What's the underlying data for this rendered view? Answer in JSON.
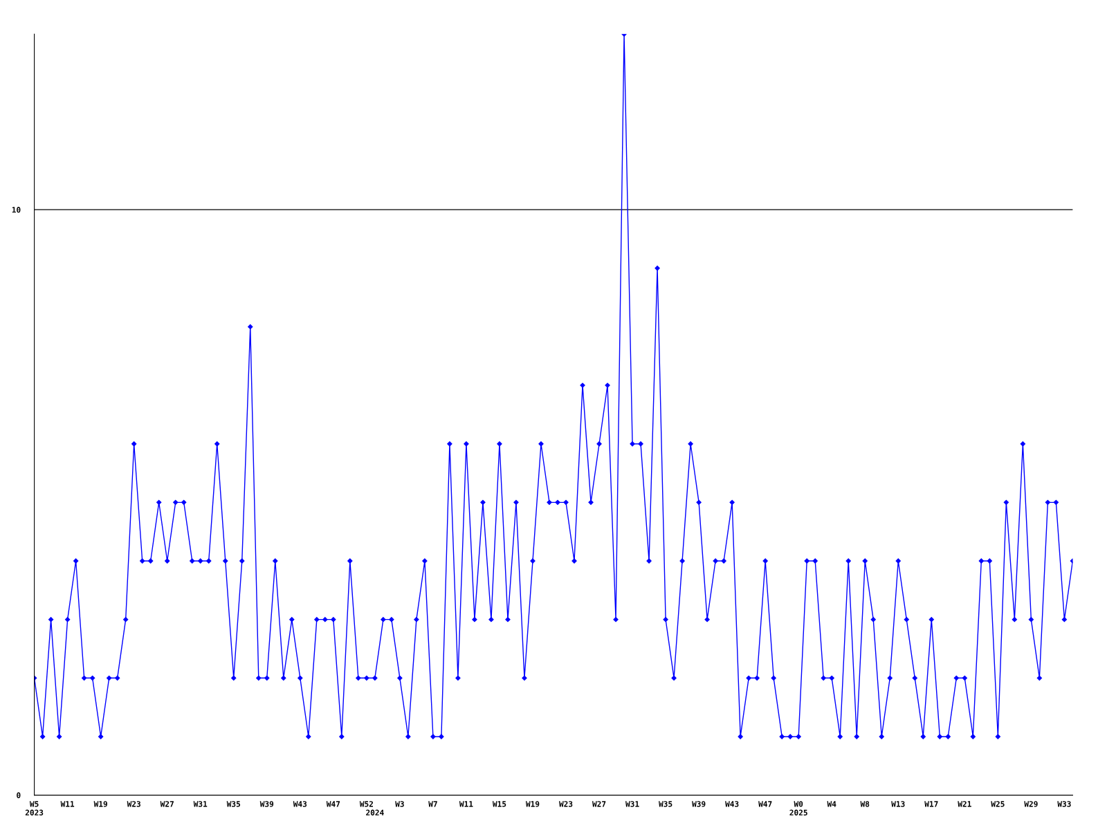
{
  "chart_data": {
    "type": "line",
    "categories": [
      "W5\n2023",
      null,
      null,
      null,
      "W11",
      null,
      null,
      null,
      "W19",
      null,
      null,
      null,
      "W23",
      null,
      null,
      null,
      "W27",
      null,
      null,
      null,
      "W31",
      null,
      null,
      null,
      "W35",
      null,
      null,
      null,
      "W39",
      null,
      null,
      null,
      "W43",
      null,
      null,
      null,
      "W47",
      null,
      null,
      null,
      "W52",
      "\n2024",
      null,
      null,
      "W3",
      null,
      null,
      null,
      "W7",
      null,
      null,
      null,
      "W11",
      null,
      null,
      null,
      "W15",
      null,
      null,
      null,
      "W19",
      null,
      null,
      null,
      "W23",
      null,
      null,
      null,
      "W27",
      null,
      null,
      null,
      "W31",
      null,
      null,
      null,
      "W35",
      null,
      null,
      null,
      "W39",
      null,
      null,
      null,
      "W43",
      null,
      null,
      null,
      "W47",
      null,
      null,
      null,
      "W0\n2025",
      null,
      null,
      null,
      "W4",
      null,
      null,
      null,
      "W8",
      null,
      null,
      null,
      "W13",
      null,
      null,
      null,
      "W17",
      null,
      null,
      null,
      "W21",
      null,
      null,
      null,
      "W25",
      null,
      null,
      null,
      "W29",
      null,
      null,
      null,
      "W33",
      null
    ],
    "series": [
      {
        "color": "#0000ff",
        "values": [
          2,
          1,
          3,
          1,
          3,
          4,
          2,
          2,
          1,
          2,
          2,
          3,
          6,
          4,
          4,
          5,
          4,
          5,
          5,
          4,
          4,
          4,
          6,
          4,
          2,
          4,
          8,
          2,
          2,
          4,
          2,
          3,
          2,
          1,
          3,
          3,
          3,
          1,
          4,
          2,
          2,
          2,
          3,
          3,
          2,
          1,
          3,
          4,
          1,
          1,
          6,
          2,
          6,
          3,
          5,
          3,
          6,
          3,
          5,
          2,
          4,
          6,
          5,
          5,
          5,
          4,
          7,
          5,
          6,
          7,
          3,
          13,
          6,
          6,
          4,
          9,
          3,
          2,
          4,
          6,
          5,
          3,
          4,
          4,
          5,
          1,
          2,
          2,
          4,
          2,
          1,
          1,
          1,
          4,
          4,
          2,
          2,
          1,
          4,
          1,
          4,
          3,
          1,
          2,
          4,
          3,
          2,
          1,
          3,
          1,
          1,
          2,
          2,
          1,
          4,
          4,
          1,
          5,
          3,
          6,
          3,
          2,
          5,
          5,
          3,
          4
        ]
      }
    ],
    "ylim": [
      0,
      13
    ],
    "yticks": [
      0,
      10
    ],
    "grid": "y",
    "marker": "diamond",
    "line_style": "solid"
  }
}
